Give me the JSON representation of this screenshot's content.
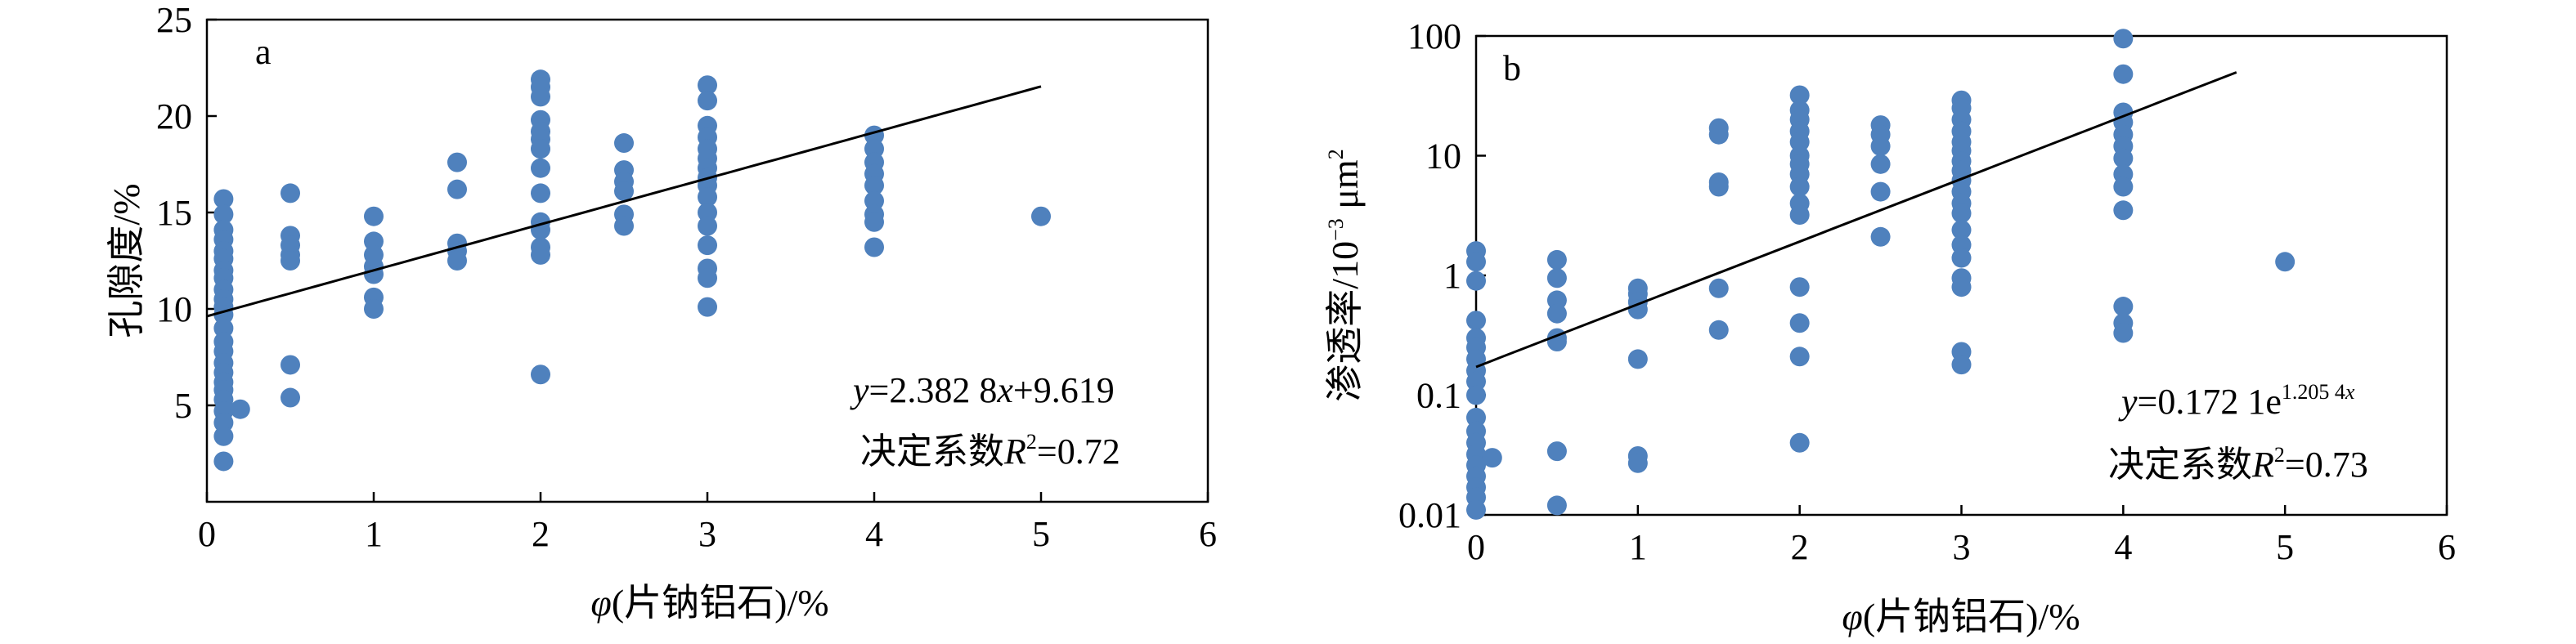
{
  "colors": {
    "point": "#4f81bd",
    "line": "#000000"
  },
  "chart_data": [
    {
      "type": "scatter",
      "panel": "a",
      "xlabel_var": "φ",
      "xlabel_rest": "(片钠铝石)/%",
      "ylabel": "孔隙度/%",
      "xlim": [
        0,
        6
      ],
      "ylim": [
        0,
        25
      ],
      "xticks": [
        "0",
        "1",
        "2",
        "3",
        "4",
        "5",
        "6"
      ],
      "yticks": [
        "5",
        "10",
        "15",
        "20",
        "25"
      ],
      "x_tick_values": [
        0,
        1,
        2,
        3,
        4,
        5,
        6
      ],
      "y_tick_values": [
        5,
        10,
        15,
        20,
        25
      ],
      "scale": "linear",
      "eq_prefix": "y",
      "eq_rest": "=2.382 8",
      "eq_var": "x",
      "eq_tail": "+9.619",
      "r2_prefix": "决定系数",
      "r2_var": "R",
      "r2_sup": "2",
      "r2_tail": "=0.72",
      "fit": {
        "type": "linear",
        "slope": 2.3828,
        "intercept": 9.619,
        "x_range": [
          0,
          5
        ]
      },
      "points": [
        [
          0.1,
          15.7
        ],
        [
          0.1,
          14.9
        ],
        [
          0.1,
          14.1
        ],
        [
          0.1,
          13.6
        ],
        [
          0.1,
          13.0
        ],
        [
          0.1,
          12.6
        ],
        [
          0.1,
          12.0
        ],
        [
          0.1,
          11.6
        ],
        [
          0.1,
          11.0
        ],
        [
          0.1,
          10.5
        ],
        [
          0.1,
          10.1
        ],
        [
          0.1,
          9.7
        ],
        [
          0.1,
          9.0
        ],
        [
          0.1,
          8.3
        ],
        [
          0.1,
          7.8
        ],
        [
          0.1,
          7.2
        ],
        [
          0.1,
          6.7
        ],
        [
          0.1,
          6.2
        ],
        [
          0.1,
          5.8
        ],
        [
          0.1,
          5.3
        ],
        [
          0.1,
          4.7
        ],
        [
          0.1,
          4.1
        ],
        [
          0.1,
          3.4
        ],
        [
          0.1,
          2.1
        ],
        [
          0.2,
          4.8
        ],
        [
          0.5,
          16.0
        ],
        [
          0.5,
          13.8
        ],
        [
          0.5,
          13.3
        ],
        [
          0.5,
          12.8
        ],
        [
          0.5,
          12.5
        ],
        [
          0.5,
          7.1
        ],
        [
          0.5,
          5.4
        ],
        [
          1,
          14.8
        ],
        [
          1,
          13.5
        ],
        [
          1,
          12.8
        ],
        [
          1,
          12.2
        ],
        [
          1,
          11.8
        ],
        [
          1,
          10.6
        ],
        [
          1,
          10.0
        ],
        [
          1.5,
          17.6
        ],
        [
          1.5,
          16.2
        ],
        [
          1.5,
          13.4
        ],
        [
          1.5,
          13.0
        ],
        [
          1.5,
          12.5
        ],
        [
          2,
          21.9
        ],
        [
          2,
          21.5
        ],
        [
          2,
          21.0
        ],
        [
          2,
          19.8
        ],
        [
          2,
          19.2
        ],
        [
          2,
          18.8
        ],
        [
          2,
          18.3
        ],
        [
          2,
          17.3
        ],
        [
          2,
          16.0
        ],
        [
          2,
          14.5
        ],
        [
          2,
          14.1
        ],
        [
          2,
          13.2
        ],
        [
          2,
          12.8
        ],
        [
          2,
          6.6
        ],
        [
          2.5,
          18.6
        ],
        [
          2.5,
          17.2
        ],
        [
          2.5,
          16.6
        ],
        [
          2.5,
          16.1
        ],
        [
          2.5,
          14.9
        ],
        [
          2.5,
          14.3
        ],
        [
          3,
          21.6
        ],
        [
          3,
          20.8
        ],
        [
          3,
          19.5
        ],
        [
          3,
          18.9
        ],
        [
          3,
          18.3
        ],
        [
          3,
          17.8
        ],
        [
          3,
          17.3
        ],
        [
          3,
          16.8
        ],
        [
          3,
          16.4
        ],
        [
          3,
          15.8
        ],
        [
          3,
          15.0
        ],
        [
          3,
          14.3
        ],
        [
          3,
          13.3
        ],
        [
          3,
          12.1
        ],
        [
          3,
          11.6
        ],
        [
          3,
          10.1
        ],
        [
          4,
          19.0
        ],
        [
          4,
          18.3
        ],
        [
          4,
          17.6
        ],
        [
          4,
          17.0
        ],
        [
          4,
          16.4
        ],
        [
          4,
          15.6
        ],
        [
          4,
          14.9
        ],
        [
          4,
          14.5
        ],
        [
          4,
          13.2
        ],
        [
          5,
          14.8
        ]
      ]
    },
    {
      "type": "scatter",
      "panel": "b",
      "xlabel_var": "φ",
      "xlabel_rest": "(片钠铝石)/%",
      "ylabel_main": "渗透率/10",
      "ylabel_sup": "−3",
      "ylabel_unit": " μm",
      "ylabel_sup2": "2",
      "xlim": [
        0,
        6
      ],
      "ylim": [
        0.01,
        100
      ],
      "xticks": [
        "0",
        "1",
        "2",
        "3",
        "4",
        "5",
        "6"
      ],
      "yticks": [
        "0.01",
        "0.1",
        "1",
        "10",
        "100"
      ],
      "x_tick_values": [
        0,
        1,
        2,
        3,
        4,
        5,
        6
      ],
      "y_tick_values": [
        0.01,
        0.1,
        1,
        10,
        100
      ],
      "scale": "log",
      "eq_prefix": "y",
      "eq_rest": "=0.172 1e",
      "eq_sup": "1.205 4",
      "eq_sup_var": "x",
      "r2_prefix": "决定系数",
      "r2_var": "R",
      "r2_sup": "2",
      "r2_tail": "=0.73",
      "fit": {
        "type": "exponential",
        "a": 0.1721,
        "b": 1.2054,
        "x_range": [
          0,
          4.7
        ]
      },
      "points": [
        [
          0,
          1.6
        ],
        [
          0,
          1.3
        ],
        [
          0,
          0.9
        ],
        [
          0,
          0.42
        ],
        [
          0,
          0.3
        ],
        [
          0,
          0.25
        ],
        [
          0,
          0.2
        ],
        [
          0,
          0.16
        ],
        [
          0,
          0.13
        ],
        [
          0,
          0.1
        ],
        [
          0,
          0.065
        ],
        [
          0,
          0.05
        ],
        [
          0,
          0.04
        ],
        [
          0,
          0.032
        ],
        [
          0,
          0.026
        ],
        [
          0,
          0.021
        ],
        [
          0,
          0.017
        ],
        [
          0,
          0.014
        ],
        [
          0,
          0.011
        ],
        [
          0.1,
          0.03
        ],
        [
          0.5,
          1.35
        ],
        [
          0.5,
          0.95
        ],
        [
          0.5,
          0.62
        ],
        [
          0.5,
          0.48
        ],
        [
          0.5,
          0.3
        ],
        [
          0.5,
          0.28
        ],
        [
          0.5,
          0.034
        ],
        [
          0.5,
          0.012
        ],
        [
          1,
          0.78
        ],
        [
          1,
          0.7
        ],
        [
          1,
          0.6
        ],
        [
          1,
          0.52
        ],
        [
          1,
          0.2
        ],
        [
          1,
          0.031
        ],
        [
          1,
          0.027
        ],
        [
          1.5,
          17
        ],
        [
          1.5,
          15
        ],
        [
          1.5,
          6
        ],
        [
          1.5,
          5.5
        ],
        [
          1.5,
          0.78
        ],
        [
          1.5,
          0.35
        ],
        [
          2,
          32
        ],
        [
          2,
          24
        ],
        [
          2,
          20
        ],
        [
          2,
          16
        ],
        [
          2,
          13
        ],
        [
          2,
          10
        ],
        [
          2,
          8.5
        ],
        [
          2,
          7
        ],
        [
          2,
          5.5
        ],
        [
          2,
          4
        ],
        [
          2,
          3.2
        ],
        [
          2,
          0.8
        ],
        [
          2,
          0.4
        ],
        [
          2,
          0.21
        ],
        [
          2,
          0.04
        ],
        [
          2.5,
          18
        ],
        [
          2.5,
          15
        ],
        [
          2.5,
          12
        ],
        [
          2.5,
          8.5
        ],
        [
          2.5,
          5
        ],
        [
          2.5,
          2.1
        ],
        [
          3,
          29
        ],
        [
          3,
          25
        ],
        [
          3,
          20
        ],
        [
          3,
          16
        ],
        [
          3,
          13
        ],
        [
          3,
          11
        ],
        [
          3,
          9
        ],
        [
          3,
          7.5
        ],
        [
          3,
          6.2
        ],
        [
          3,
          5
        ],
        [
          3,
          4
        ],
        [
          3,
          3.3
        ],
        [
          3,
          2.4
        ],
        [
          3,
          1.8
        ],
        [
          3,
          1.4
        ],
        [
          3,
          0.95
        ],
        [
          3,
          0.8
        ],
        [
          3,
          0.23
        ],
        [
          3,
          0.18
        ],
        [
          4,
          95
        ],
        [
          4,
          48
        ],
        [
          4,
          23
        ],
        [
          4,
          19
        ],
        [
          4,
          15
        ],
        [
          4,
          12
        ],
        [
          4,
          9.5
        ],
        [
          4,
          7
        ],
        [
          4,
          5.5
        ],
        [
          4,
          3.5
        ],
        [
          4,
          0.55
        ],
        [
          4,
          0.4
        ],
        [
          4,
          0.33
        ],
        [
          5,
          1.3
        ]
      ]
    }
  ]
}
